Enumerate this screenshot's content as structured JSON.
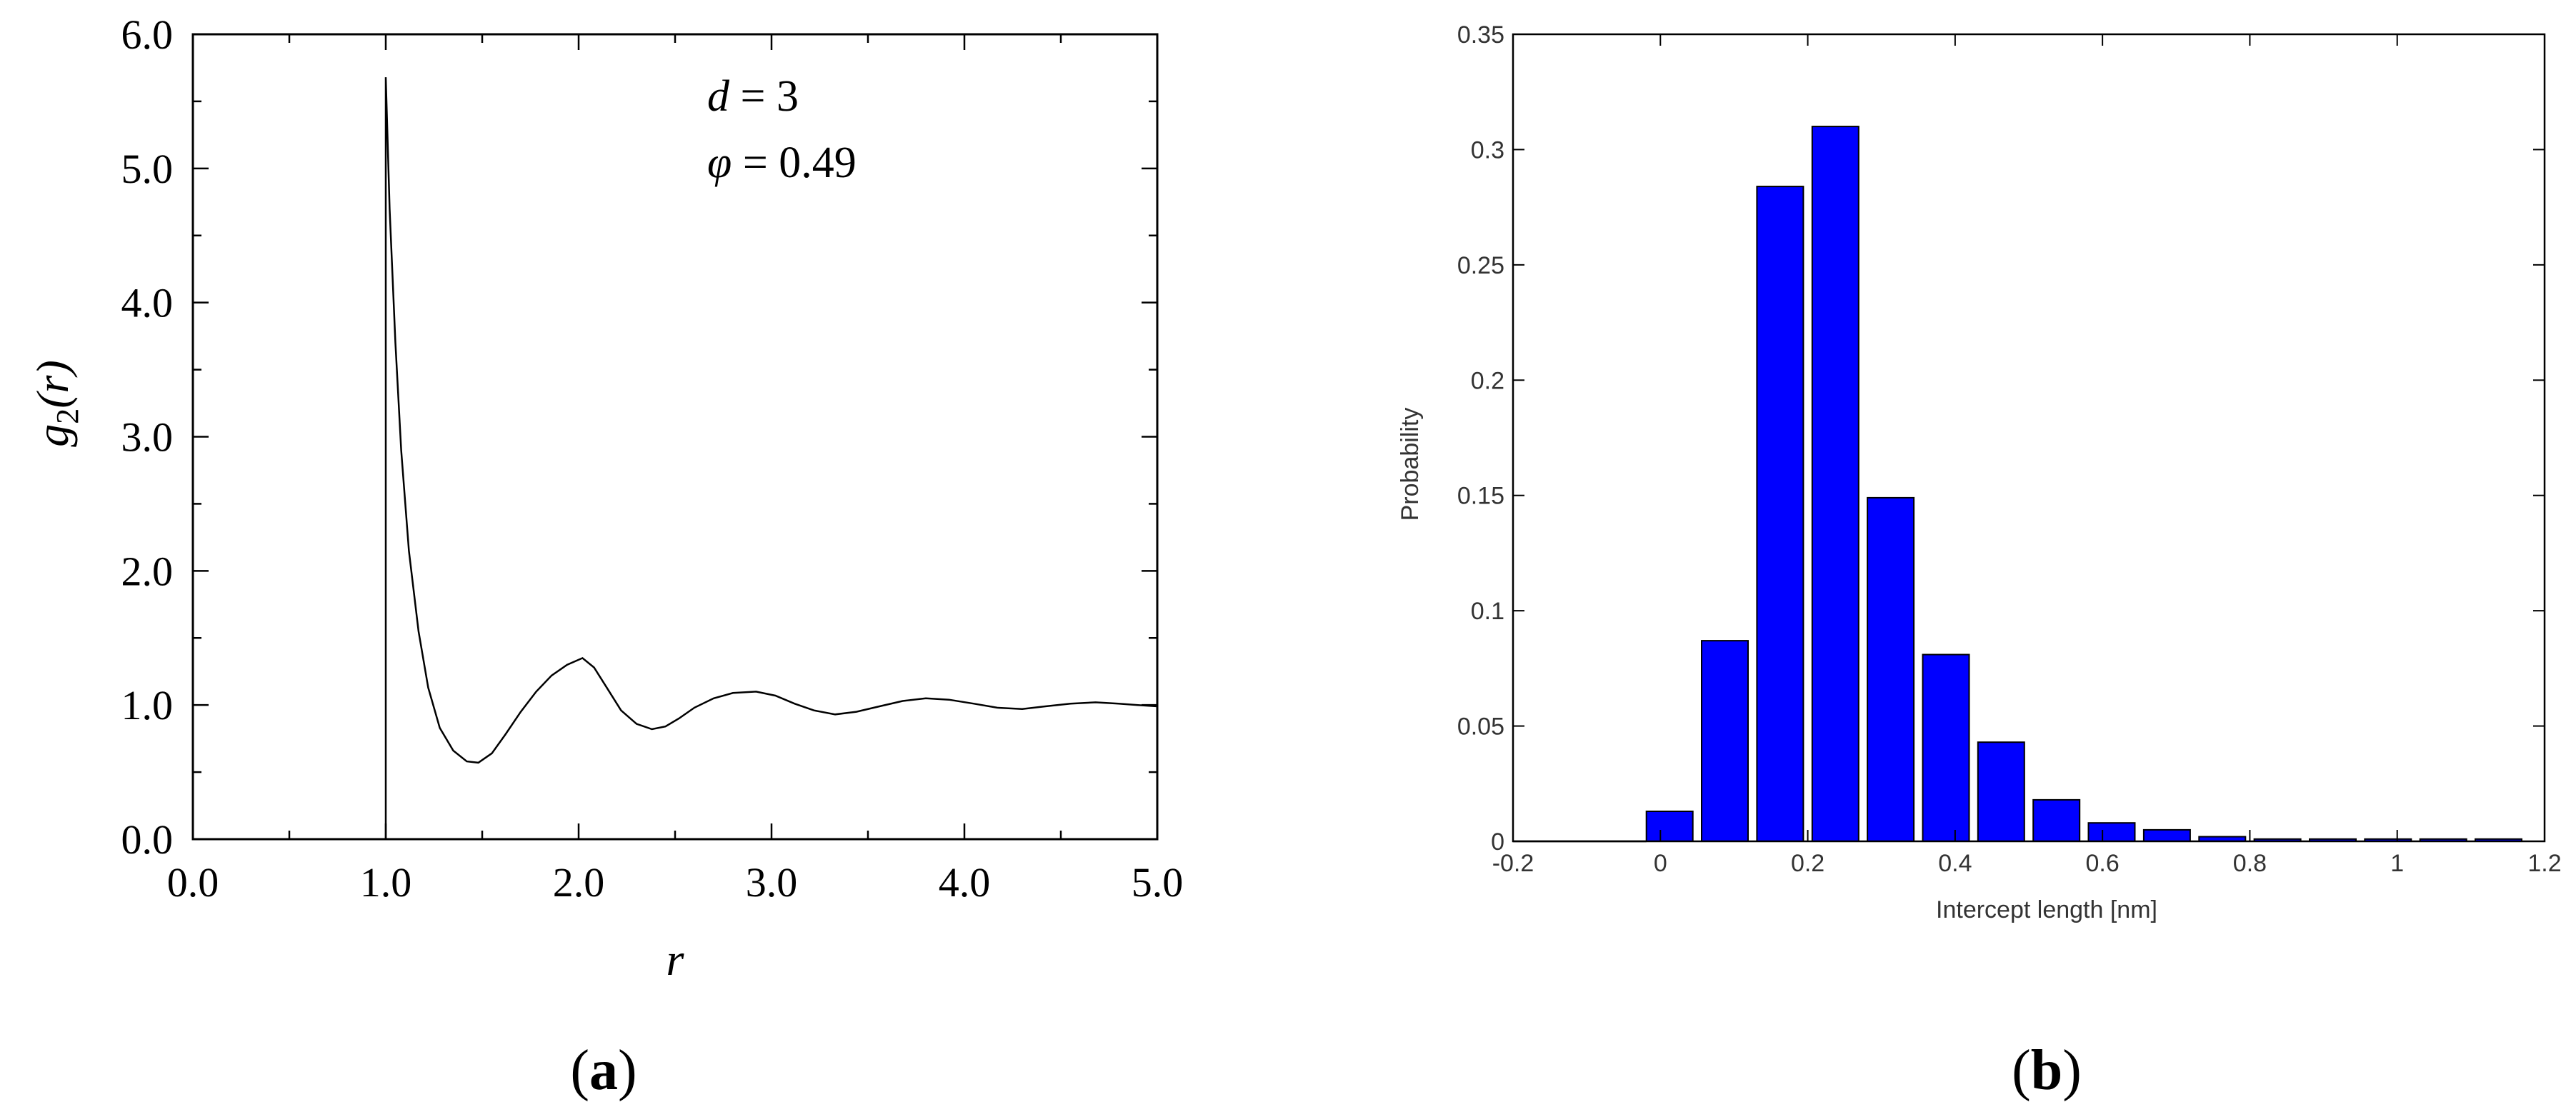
{
  "colors": {
    "axis": "#000000",
    "curve": "#000000",
    "bar_fill": "#0000ff",
    "bar_edge": "#000000",
    "background": "#ffffff"
  },
  "panels": [
    {
      "label": "a"
    },
    {
      "label": "b"
    }
  ],
  "chart_data": [
    {
      "type": "line",
      "xlabel": "r",
      "ylabel_main": "g",
      "ylabel_sub": "2",
      "ylabel_arg": "(r)",
      "annotation_d_symbol": "d",
      "annotation_d_value": " = 3",
      "annotation_phi_symbol": "φ",
      "annotation_phi_value": " = 0.49",
      "xlim": [
        0,
        5
      ],
      "ylim": [
        0,
        6
      ],
      "xticks": [
        "0.0",
        "1.0",
        "2.0",
        "3.0",
        "4.0",
        "5.0"
      ],
      "yticks": [
        "0.0",
        "1.0",
        "2.0",
        "3.0",
        "4.0",
        "5.0",
        "6.0"
      ],
      "series": [
        {
          "x": [
            1.0,
            1.0,
            1.02,
            1.05,
            1.08,
            1.12,
            1.17,
            1.22,
            1.28,
            1.35,
            1.42,
            1.48,
            1.55,
            1.62,
            1.7,
            1.78,
            1.86,
            1.94,
            2.02,
            2.08,
            2.15,
            2.22,
            2.3,
            2.38,
            2.45,
            2.52,
            2.6,
            2.7,
            2.8,
            2.92,
            3.02,
            3.12,
            3.22,
            3.33,
            3.44,
            3.56,
            3.68,
            3.8,
            3.92,
            4.05,
            4.17,
            4.3,
            4.42,
            4.55,
            4.68,
            4.8,
            4.9,
            5.0
          ],
          "y": [
            0.0,
            5.68,
            4.7,
            3.7,
            2.9,
            2.15,
            1.55,
            1.13,
            0.83,
            0.66,
            0.58,
            0.57,
            0.64,
            0.78,
            0.95,
            1.1,
            1.22,
            1.3,
            1.35,
            1.28,
            1.12,
            0.96,
            0.86,
            0.82,
            0.84,
            0.9,
            0.98,
            1.05,
            1.09,
            1.1,
            1.07,
            1.01,
            0.96,
            0.93,
            0.95,
            0.99,
            1.03,
            1.05,
            1.04,
            1.01,
            0.98,
            0.97,
            0.99,
            1.01,
            1.02,
            1.01,
            1.0,
            0.99
          ]
        }
      ]
    },
    {
      "type": "bar",
      "xlabel": "Intercept length [nm]",
      "ylabel": "Probability",
      "xlim": [
        -0.2,
        1.2
      ],
      "ylim": [
        0,
        0.35
      ],
      "xticks": [
        "-0.2",
        "0",
        "0.2",
        "0.4",
        "0.6",
        "0.8",
        "1",
        "1.2"
      ],
      "yticks": [
        "0",
        "0.05",
        "0.1",
        "0.15",
        "0.2",
        "0.25",
        "0.3",
        "0.35"
      ],
      "bin_width": 0.075,
      "centers": [
        0.0125,
        0.0875,
        0.1625,
        0.2375,
        0.3125,
        0.3875,
        0.4625,
        0.5375,
        0.6125,
        0.6875,
        0.7625,
        0.8375,
        0.9125,
        0.9875,
        1.0625,
        1.1375
      ],
      "values": [
        0.013,
        0.087,
        0.284,
        0.31,
        0.149,
        0.081,
        0.043,
        0.018,
        0.008,
        0.005,
        0.002,
        0.001,
        0.001,
        0.001,
        0.001,
        0.001
      ]
    }
  ]
}
